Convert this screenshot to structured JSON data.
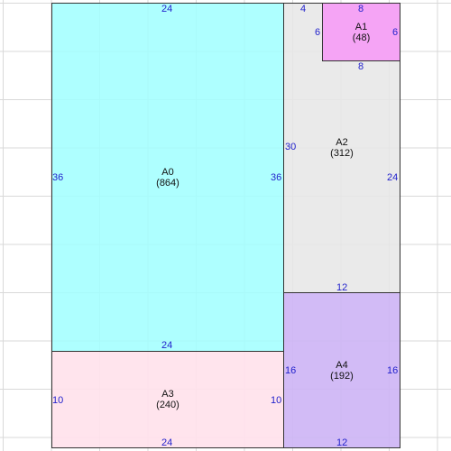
{
  "rects": {
    "A0": {
      "name": "A0",
      "area": "(864)",
      "top": "24",
      "bottom": "24",
      "left": "36",
      "right": "36"
    },
    "A1": {
      "name": "A1",
      "area": "(48)",
      "top": "8",
      "bottom": "8",
      "left": "6",
      "right": "6"
    },
    "A2": {
      "name": "A2",
      "area": "(312)",
      "topleft": "4",
      "bottom": "12",
      "left": "30",
      "right": "24"
    },
    "A3": {
      "name": "A3",
      "area": "(240)",
      "top": "24",
      "bottom": "24",
      "left": "10",
      "right": "10"
    },
    "A4": {
      "name": "A4",
      "area": "(192)",
      "top": "12",
      "bottom": "12",
      "left": "16",
      "right": "16"
    }
  },
  "colors": {
    "cyan": "#a0ffff",
    "gray": "#e6e6e6",
    "pink": "#ffe1eb",
    "purple": "#cdb4f5",
    "magenta": "#f5a0f5",
    "dimension_text": "#2222cc",
    "grid": "#d9d9d9"
  }
}
